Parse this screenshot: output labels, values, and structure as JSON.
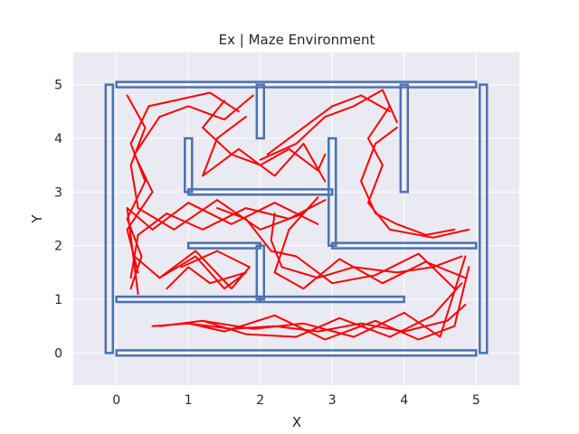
{
  "chart_data": {
    "type": "line",
    "title": "Ex | Maze Environment",
    "xlabel": "X",
    "ylabel": "Y",
    "xlim": [
      -0.6,
      5.6
    ],
    "ylim": [
      -0.6,
      5.6
    ],
    "xticks": [
      0,
      1,
      2,
      3,
      4,
      5
    ],
    "yticks": [
      0,
      1,
      2,
      3,
      4,
      5
    ],
    "grid": true,
    "colors": {
      "background": "#EAEAF2",
      "grid": "#FFFFFF",
      "wall": "#4C72B0",
      "trajectory": "#FF0000"
    },
    "walls": [
      {
        "x0": 0.0,
        "y0": 0.0,
        "x1": 5.0,
        "y1": 0.0
      },
      {
        "x0": 0.0,
        "y0": 5.0,
        "x1": 5.0,
        "y1": 5.0
      },
      {
        "x0": -0.1,
        "y0": 0.0,
        "x1": -0.1,
        "y1": 5.0
      },
      {
        "x0": 5.1,
        "y0": 0.0,
        "x1": 5.1,
        "y1": 5.0
      },
      {
        "x0": 0.0,
        "y0": 1.0,
        "x1": 2.0,
        "y1": 1.0
      },
      {
        "x0": 2.0,
        "y0": 1.0,
        "x1": 4.0,
        "y1": 1.0
      },
      {
        "x0": 1.0,
        "y0": 2.0,
        "x1": 2.0,
        "y1": 2.0
      },
      {
        "x0": 3.0,
        "y0": 2.0,
        "x1": 5.0,
        "y1": 2.0
      },
      {
        "x0": 1.0,
        "y0": 3.0,
        "x1": 3.0,
        "y1": 3.0
      },
      {
        "x0": 1.0,
        "y0": 3.0,
        "x1": 1.0,
        "y1": 4.0
      },
      {
        "x0": 2.0,
        "y0": 4.0,
        "x1": 2.0,
        "y1": 5.0
      },
      {
        "x0": 2.0,
        "y0": 1.0,
        "x1": 2.0,
        "y1": 2.0
      },
      {
        "x0": 3.0,
        "y0": 2.0,
        "x1": 3.0,
        "y1": 4.0
      },
      {
        "x0": 4.0,
        "y0": 3.0,
        "x1": 4.0,
        "y1": 5.0
      }
    ],
    "series": [
      {
        "x": [
          0.5,
          1.0,
          1.6,
          2.2,
          2.8,
          3.4,
          4.0,
          4.6,
          4.85
        ],
        "y": [
          0.5,
          0.55,
          0.45,
          0.5,
          0.4,
          0.55,
          0.4,
          0.6,
          0.9
        ]
      },
      {
        "x": [
          0.6,
          1.2,
          1.8,
          2.5,
          3.1,
          3.8,
          4.4,
          4.8
        ],
        "y": [
          0.5,
          0.6,
          0.35,
          0.3,
          0.65,
          0.3,
          0.7,
          1.3
        ]
      },
      {
        "x": [
          1.0,
          1.5,
          2.2,
          2.9,
          3.6,
          4.2,
          4.7,
          4.9
        ],
        "y": [
          0.55,
          0.4,
          0.7,
          0.25,
          0.6,
          0.25,
          0.5,
          1.6
        ]
      },
      {
        "x": [
          1.2,
          1.9,
          2.6,
          3.3,
          4.0,
          4.5,
          4.85
        ],
        "y": [
          0.6,
          0.45,
          0.55,
          0.3,
          0.75,
          0.3,
          1.8
        ]
      },
      {
        "x": [
          4.8,
          4.4,
          3.9,
          3.3,
          2.8,
          2.3,
          2.15,
          2.2
        ],
        "y": [
          1.8,
          1.6,
          1.5,
          1.6,
          1.4,
          1.6,
          2.1,
          2.6
        ]
      },
      {
        "x": [
          4.85,
          4.3,
          3.7,
          3.1,
          2.6,
          2.2,
          2.4,
          2.8
        ],
        "y": [
          1.4,
          1.7,
          1.3,
          1.75,
          1.2,
          1.5,
          2.3,
          2.9
        ]
      },
      {
        "x": [
          4.7,
          4.2,
          3.6,
          3.0,
          2.5,
          2.15,
          1.8,
          1.4
        ],
        "y": [
          1.2,
          1.85,
          1.45,
          1.3,
          1.8,
          1.9,
          2.5,
          2.7
        ]
      },
      {
        "x": [
          2.9,
          2.4,
          1.8,
          1.2,
          0.7,
          0.3,
          0.2
        ],
        "y": [
          2.85,
          2.5,
          2.7,
          2.3,
          2.6,
          2.2,
          1.4
        ]
      },
      {
        "x": [
          2.8,
          2.2,
          1.6,
          1.0,
          0.5,
          0.15,
          0.3
        ],
        "y": [
          2.4,
          2.8,
          2.4,
          2.8,
          2.3,
          2.7,
          1.1
        ]
      },
      {
        "x": [
          2.6,
          2.0,
          1.4,
          0.8,
          0.3,
          0.2,
          0.4,
          0.15
        ],
        "y": [
          2.6,
          2.3,
          2.85,
          2.3,
          2.7,
          3.5,
          4.2,
          4.8
        ]
      },
      {
        "x": [
          0.2,
          0.35,
          0.15,
          0.4,
          0.2,
          0.45,
          0.8,
          1.3,
          1.7
        ],
        "y": [
          1.2,
          1.8,
          2.5,
          3.2,
          3.9,
          4.6,
          4.7,
          4.85,
          4.5
        ]
      },
      {
        "x": [
          0.3,
          0.15,
          0.5,
          0.25,
          0.6,
          1.0,
          1.5,
          1.9
        ],
        "y": [
          1.5,
          2.3,
          3.0,
          3.7,
          4.4,
          4.6,
          4.35,
          4.8
        ]
      },
      {
        "x": [
          0.7,
          1.0,
          1.3,
          1.8,
          1.5,
          1.1,
          0.6
        ],
        "y": [
          1.2,
          1.6,
          1.3,
          1.5,
          1.2,
          1.8,
          1.4
        ]
      },
      {
        "x": [
          0.25,
          0.6,
          1.1,
          1.6,
          1.85,
          1.4,
          0.9
        ],
        "y": [
          1.8,
          1.4,
          1.9,
          1.2,
          1.6,
          1.9,
          1.6
        ]
      },
      {
        "x": [
          1.5,
          1.2,
          1.6,
          2.0,
          2.4,
          2.8,
          2.9
        ],
        "y": [
          4.7,
          4.2,
          3.7,
          3.5,
          3.8,
          3.4,
          3.7
        ]
      },
      {
        "x": [
          1.8,
          1.4,
          1.2,
          1.7,
          2.2,
          2.6,
          2.9
        ],
        "y": [
          4.4,
          4.0,
          3.3,
          3.8,
          3.3,
          3.9,
          3.2
        ]
      },
      {
        "x": [
          2.1,
          2.6,
          3.0,
          3.4,
          3.8
        ],
        "y": [
          3.7,
          4.2,
          4.6,
          4.8,
          4.5
        ]
      },
      {
        "x": [
          2.0,
          2.5,
          2.9,
          3.3,
          3.7,
          3.9
        ],
        "y": [
          3.6,
          3.9,
          4.4,
          4.6,
          4.9,
          4.3
        ]
      },
      {
        "x": [
          3.9,
          3.6,
          3.4,
          3.6,
          3.9,
          4.3,
          4.7
        ],
        "y": [
          4.2,
          3.9,
          3.2,
          2.6,
          2.4,
          2.2,
          2.3
        ]
      },
      {
        "x": [
          3.8,
          3.5,
          3.7,
          3.5,
          3.8,
          4.4,
          4.9
        ],
        "y": [
          4.6,
          4.0,
          3.5,
          2.8,
          2.3,
          2.15,
          2.3
        ]
      }
    ]
  }
}
